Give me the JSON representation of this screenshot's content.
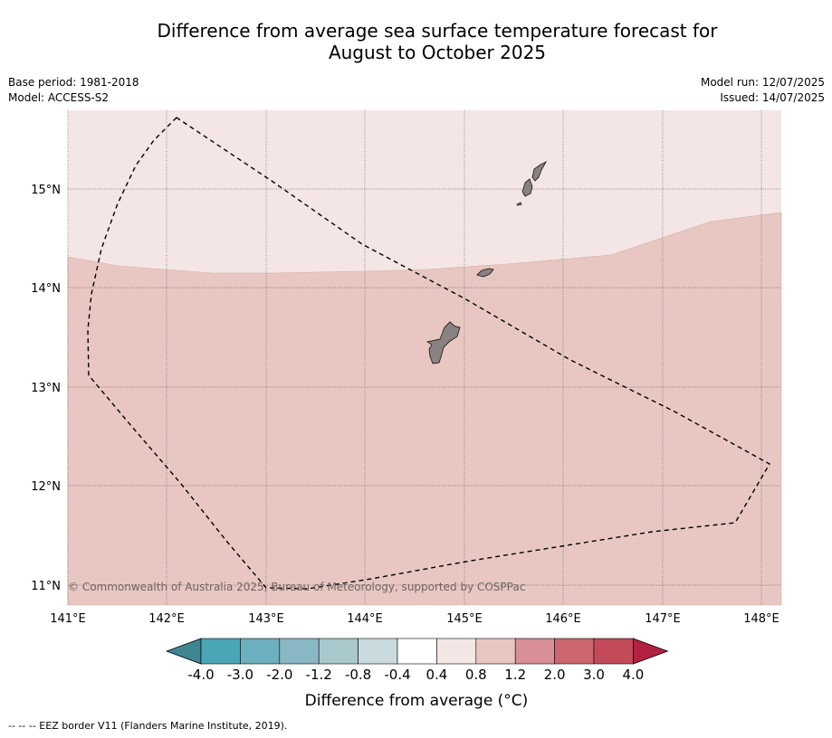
{
  "title": {
    "line1": "Difference from average sea surface temperature forecast for",
    "line2": "August to October 2025"
  },
  "meta_left": {
    "base_period": "Base period: 1981-2018",
    "model": "Model: ACCESS-S2"
  },
  "meta_right": {
    "model_run": "Model run: 12/07/2025",
    "issued": "Issued: 14/07/2025"
  },
  "map": {
    "lon_labels": [
      "141°E",
      "142°E",
      "143°E",
      "144°E",
      "145°E",
      "146°E",
      "147°E",
      "148°E"
    ],
    "lat_labels": [
      "15°N",
      "14°N",
      "13°N",
      "12°N",
      "11°N"
    ],
    "copyright": "© Commonwealth of Australia 2025, Bureau of Meteorology, supported by COSPPac",
    "colors": {
      "band_04_08": "#f4e6e5",
      "band_08_12": "#e8c7c2",
      "land": "#8a8280",
      "eez_line": "#000000"
    }
  },
  "colorbar": {
    "tick_labels": [
      "-4.0",
      "-3.0",
      "-2.0",
      "-1.2",
      "-0.8",
      "-0.4",
      "0.4",
      "0.8",
      "1.2",
      "2.0",
      "3.0",
      "4.0"
    ],
    "colors": [
      "#3f8592",
      "#4aa6b5",
      "#6cb0bf",
      "#8ab7c4",
      "#a8c8cc",
      "#cadbdf",
      "#ffffff",
      "#f4e6e5",
      "#e8c7c2",
      "#d98f97",
      "#cc6670",
      "#c34a5a",
      "#b42040"
    ],
    "label": "Difference from average (°C)"
  },
  "footer": {
    "legend": "--  --  -- EEZ border V11 (Flanders Marine Institute, 2019)."
  }
}
